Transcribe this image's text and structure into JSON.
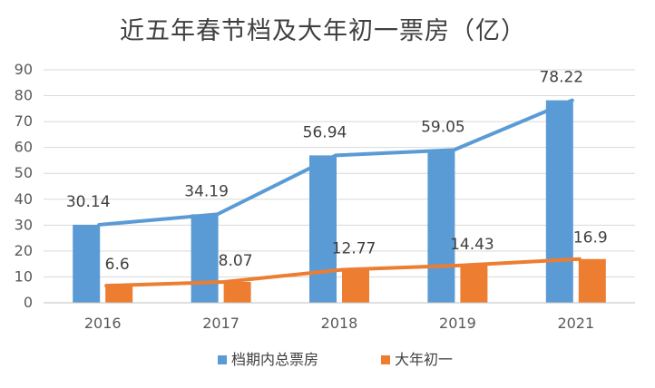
{
  "chart_data": {
    "type": "bar",
    "title": "近五年春节档及大年初一票房（亿）",
    "categories": [
      "2016",
      "2017",
      "2018",
      "2019",
      "2021"
    ],
    "ylim": [
      0,
      90
    ],
    "yticks": [
      0,
      10,
      20,
      30,
      40,
      50,
      60,
      70,
      80,
      90
    ],
    "grid": true,
    "legend_position": "bottom",
    "series": [
      {
        "name": "档期内总票房",
        "color": "#5b9bd5",
        "values": [
          30.14,
          34.19,
          56.94,
          59.05,
          78.22
        ],
        "labels": [
          "30.14",
          "34.19",
          "56.94",
          "59.05",
          "78.22"
        ]
      },
      {
        "name": "大年初一",
        "color": "#ed7d31",
        "values": [
          6.6,
          8.07,
          12.77,
          14.43,
          16.9
        ],
        "labels": [
          "6.6",
          "8.07",
          "12.77",
          "14.43",
          "16.9"
        ]
      }
    ],
    "trend_lines": true
  }
}
